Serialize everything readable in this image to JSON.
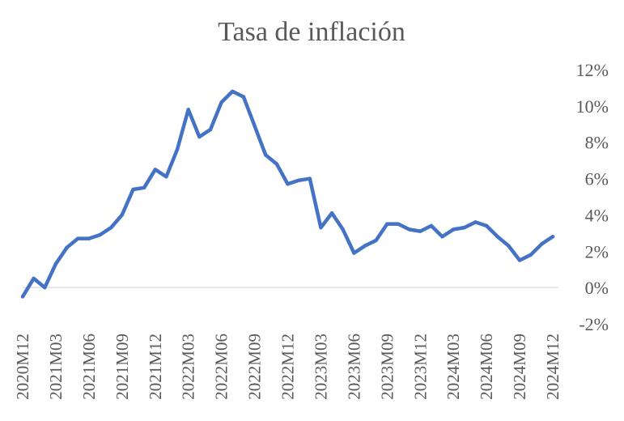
{
  "chart_data": {
    "type": "line",
    "title": "Tasa de inflación",
    "xlabel": "",
    "ylabel": "",
    "ylim": [
      -2,
      12
    ],
    "y_ticks": [
      -2,
      0,
      2,
      4,
      6,
      8,
      10,
      12
    ],
    "y_tick_labels": [
      "-2%",
      "0%",
      "2%",
      "4%",
      "6%",
      "8%",
      "10%",
      "12%"
    ],
    "y_axis_position": "right",
    "grid": false,
    "legend": "none",
    "x_tick_labels": [
      "2020M12",
      "2021M03",
      "2021M06",
      "2021M09",
      "2021M12",
      "2022M03",
      "2022M06",
      "2022M09",
      "2022M12",
      "2023M03",
      "2023M06",
      "2023M09",
      "2023M12",
      "2024M03",
      "2024M06",
      "2024M09",
      "2024M12"
    ],
    "x": [
      "2020M12",
      "2021M01",
      "2021M02",
      "2021M03",
      "2021M04",
      "2021M05",
      "2021M06",
      "2021M07",
      "2021M08",
      "2021M09",
      "2021M10",
      "2021M11",
      "2021M12",
      "2022M01",
      "2022M02",
      "2022M03",
      "2022M04",
      "2022M05",
      "2022M06",
      "2022M07",
      "2022M08",
      "2022M09",
      "2022M10",
      "2022M11",
      "2022M12",
      "2023M01",
      "2023M02",
      "2023M03",
      "2023M04",
      "2023M05",
      "2023M06",
      "2023M07",
      "2023M08",
      "2023M09",
      "2023M10",
      "2023M11",
      "2023M12",
      "2024M01",
      "2024M02",
      "2024M03",
      "2024M04",
      "2024M05",
      "2024M06",
      "2024M07",
      "2024M08",
      "2024M09",
      "2024M10",
      "2024M11",
      "2024M12"
    ],
    "series": [
      {
        "values": [
          -0.5,
          0.5,
          0.0,
          1.3,
          2.2,
          2.7,
          2.7,
          2.9,
          3.3,
          4.0,
          5.4,
          5.5,
          6.5,
          6.1,
          7.6,
          9.8,
          8.3,
          8.7,
          10.2,
          10.8,
          10.5,
          8.9,
          7.3,
          6.8,
          5.7,
          5.9,
          6.0,
          3.3,
          4.1,
          3.2,
          1.9,
          2.3,
          2.6,
          3.5,
          3.5,
          3.2,
          3.1,
          3.4,
          2.8,
          3.2,
          3.3,
          3.6,
          3.4,
          2.8,
          2.3,
          1.5,
          1.8,
          2.4,
          2.8
        ],
        "color": "#4472C4"
      }
    ]
  }
}
